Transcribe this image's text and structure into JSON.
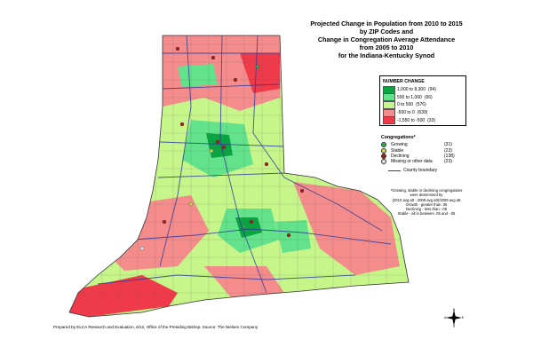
{
  "title": {
    "lines": [
      "Projected Change in Population from 2010 to 2015",
      "by ZIP Codes and",
      "Change in Congregation Average Attendance",
      "from 2005 to 2010",
      "for the Indiana-Kentucky Synod"
    ]
  },
  "legend": {
    "title": "NUMBER CHANGE",
    "items": [
      {
        "label": "1,000  to  8,300",
        "count": "(94)",
        "color": "#0aa443"
      },
      {
        "label": "500  to  1,000",
        "count": "(66)",
        "color": "#62e38b"
      },
      {
        "label": "0  to   500",
        "count": "(576)",
        "color": "#c6f58a"
      },
      {
        "label": "-500  to     0",
        "count": "(639)",
        "color": "#f58c8c"
      },
      {
        "label": "-1,550  to   -500",
        "count": "(33)",
        "color": "#ef3a4a"
      }
    ]
  },
  "congregations": {
    "title": "Congregations*",
    "items": [
      {
        "label": "Growing",
        "count": "(31)",
        "color": "#2eb34a"
      },
      {
        "label": "Stable",
        "count": "(23)",
        "color": "#c8d84a"
      },
      {
        "label": "Declining",
        "count": "(138)",
        "color": "#a41e1e"
      },
      {
        "label": "Missing or other data",
        "count": "(23)",
        "color": "#e0e0e0"
      }
    ]
  },
  "county_key": {
    "label": "County boundary"
  },
  "notes": {
    "lines": [
      "*Growing, stable or declining congregations",
      "were determined by",
      "(2010 avg att - 2005 avg att)/2005 avg att",
      "Growth - greater than .05",
      "Declining - less than -.05",
      "Stable - all in between .05 and -.05"
    ]
  },
  "footer": {
    "text": "Prepared by ELCA Research and Evaluation, 6/12, Office of the Presiding Bishop. Source: The Nielsen Company"
  },
  "compass": {
    "labels": [
      "N",
      "E",
      "S",
      "W"
    ]
  },
  "map_colors": {
    "high_growth": "#0aa443",
    "growth": "#62e38b",
    "light_growth": "#c6f58a",
    "light_decline": "#f58c8c",
    "decline": "#ef3a4a",
    "roads": "#2d3a9a",
    "congregation_dot": "#a41e1e"
  }
}
